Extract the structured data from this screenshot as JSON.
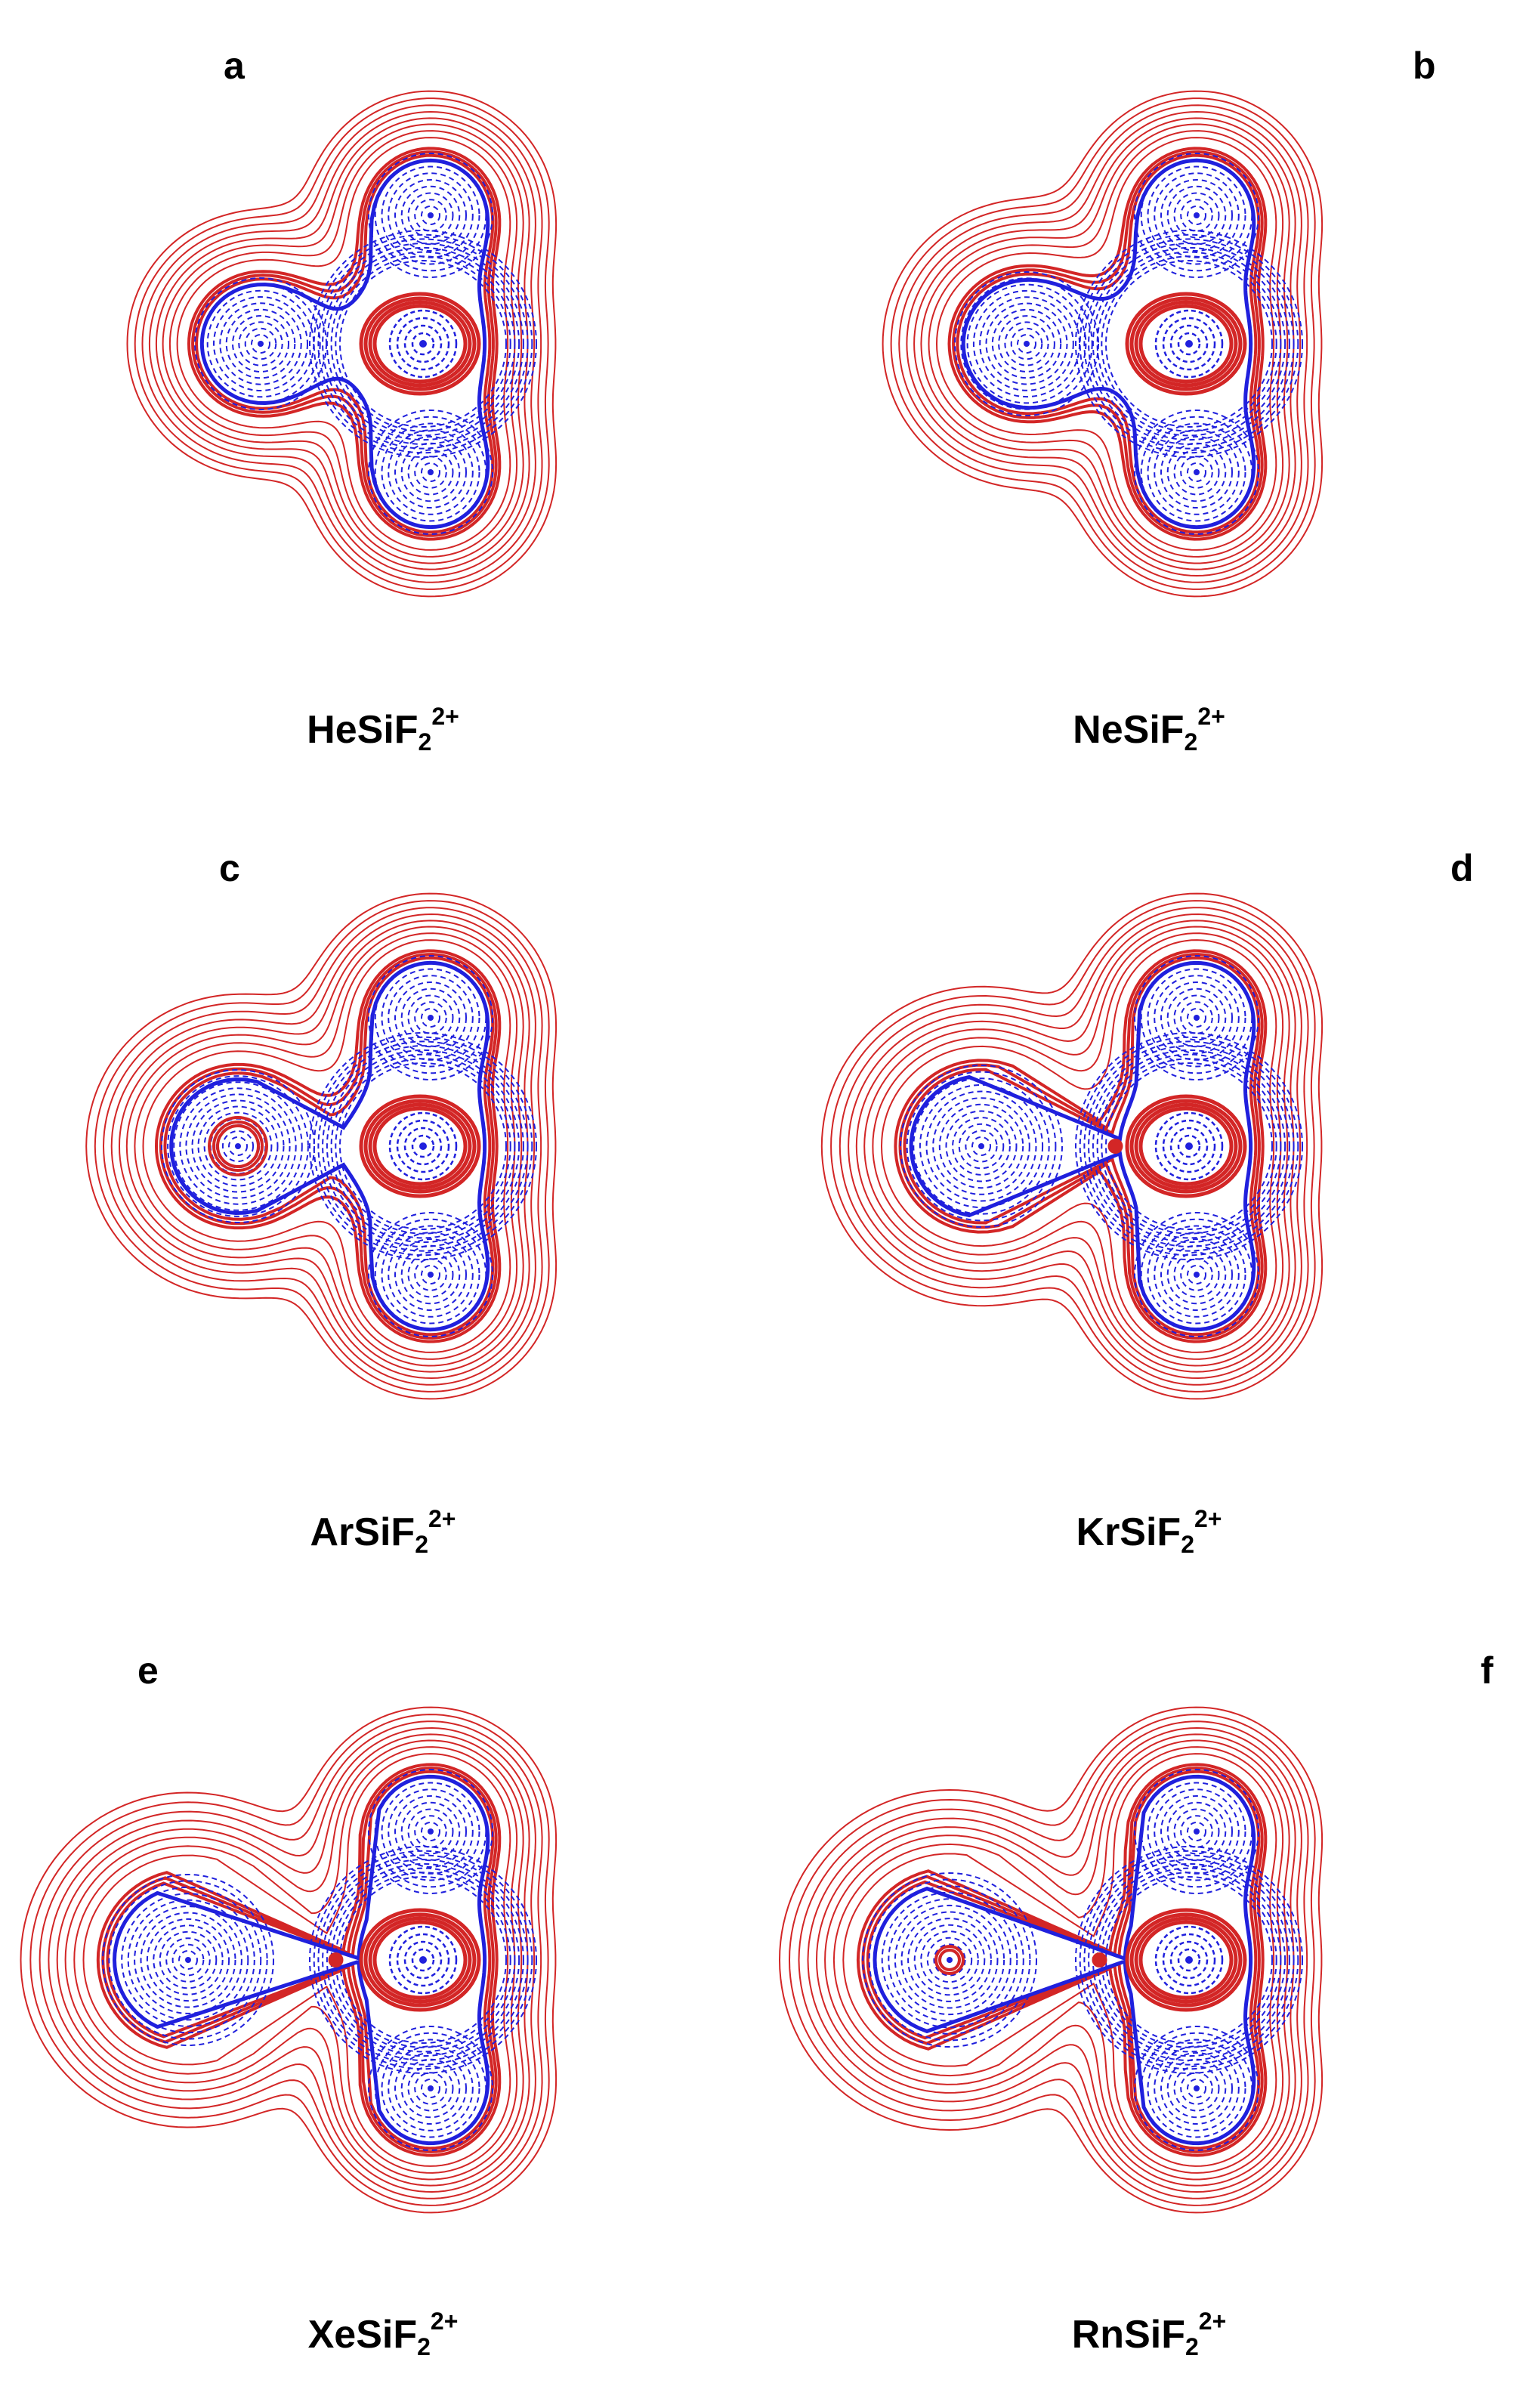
{
  "colors": {
    "positive": "#d32626",
    "negative": "#2020dd"
  },
  "panels": [
    {
      "letter": "a",
      "prefix": "HeSiF",
      "sub": "2",
      "sup": "2+",
      "rg_core": false,
      "rg_ring": false,
      "bcp": false,
      "rg_size": 0.55
    },
    {
      "letter": "b",
      "prefix": "NeSiF",
      "sub": "2",
      "sup": "2+",
      "rg_core": false,
      "rg_ring": false,
      "bcp": false,
      "rg_size": 0.75
    },
    {
      "letter": "c",
      "prefix": "ArSiF",
      "sub": "2",
      "sup": "2+",
      "rg_core": true,
      "rg_ring": false,
      "bcp": false,
      "rg_size": 0.9
    },
    {
      "letter": "d",
      "prefix": "KrSiF",
      "sub": "2",
      "sup": "2+",
      "rg_core": false,
      "rg_ring": false,
      "bcp": true,
      "rg_size": 1.05
    },
    {
      "letter": "e",
      "prefix": "XeSiF",
      "sub": "2",
      "sup": "2+",
      "rg_core": false,
      "rg_ring": false,
      "bcp": true,
      "rg_size": 1.2
    },
    {
      "letter": "f",
      "prefix": "RnSiF",
      "sub": "2",
      "sup": "2+",
      "rg_core": false,
      "rg_ring": true,
      "bcp": true,
      "rg_size": 1.25
    }
  ]
}
